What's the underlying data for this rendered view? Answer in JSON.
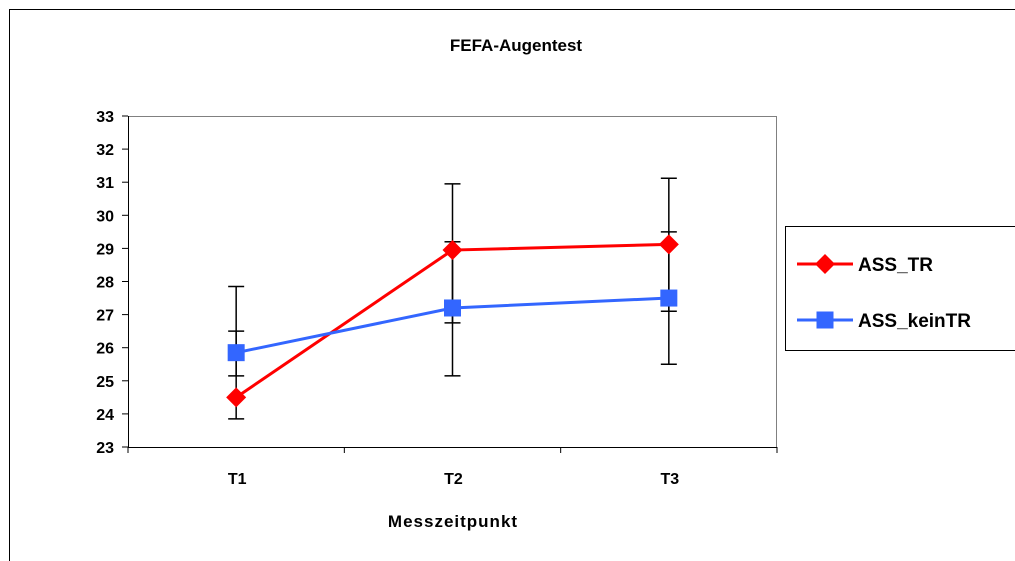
{
  "chart_data": {
    "type": "line",
    "title": "FEFA-Augentest",
    "xlabel": "Messzeitpunkt",
    "ylabel": "",
    "categories": [
      "T1",
      "T2",
      "T3"
    ],
    "ylim": [
      23,
      33
    ],
    "yticks": [
      "23",
      "24",
      "25",
      "26",
      "27",
      "28",
      "29",
      "30",
      "31",
      "32",
      "33"
    ],
    "grid": false,
    "legend_position": "right",
    "series": [
      {
        "name": "ASS_TR",
        "color": "#ff0000",
        "marker": "diamond",
        "values": [
          24.5,
          28.95,
          29.12
        ],
        "error_low": [
          23.85,
          26.75,
          27.1
        ],
        "error_high": [
          27.85,
          30.95,
          31.12
        ]
      },
      {
        "name": "ASS_keinTR",
        "color": "#3366ff",
        "marker": "square",
        "values": [
          25.85,
          27.2,
          27.5
        ],
        "error_low": [
          25.15,
          25.15,
          25.5
        ],
        "error_high": [
          26.5,
          29.2,
          29.5
        ]
      }
    ]
  }
}
